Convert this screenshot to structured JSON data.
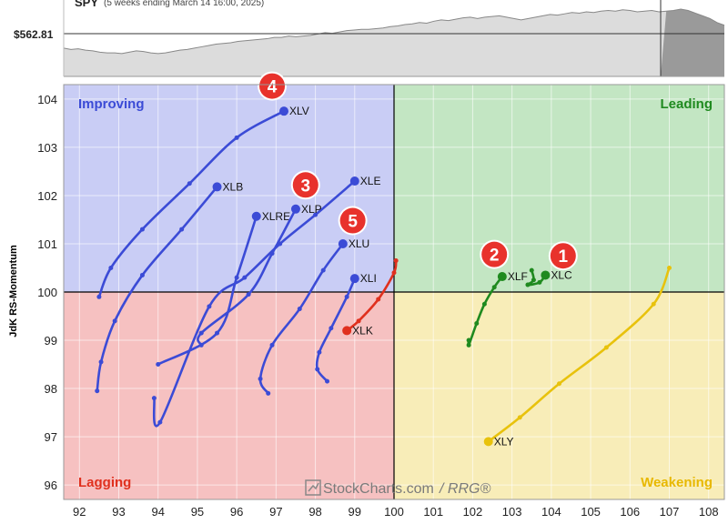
{
  "header": {
    "symbol": "SPY",
    "subtitle": "(5 weeks ending March 14 16:00, 2025)",
    "price_label": "$562.81"
  },
  "quadrants": {
    "improving": "Improving",
    "leading": "Leading",
    "lagging": "Lagging",
    "weakening": "Weakening"
  },
  "colors": {
    "improving": "#c9cdf5",
    "leading": "#c3e6c3",
    "lagging": "#f6c1c1",
    "weakening": "#f8edb8",
    "improving_text": "#3b4bd6",
    "leading_text": "#1f8a1f",
    "lagging_text": "#e0301e",
    "weakening_text": "#e8b800",
    "badge": "#e8322c"
  },
  "watermark": {
    "brand": "StockCharts.com",
    "product": "/ RRG®"
  },
  "chart_data": {
    "type": "scatter",
    "ylabel": "JdK RS-Momentum",
    "xlim": [
      91.6,
      108.4
    ],
    "ylim": [
      95.7,
      104.3
    ],
    "x_ticks": [
      "92",
      "93",
      "94",
      "95",
      "96",
      "97",
      "98",
      "99",
      "100",
      "101",
      "102",
      "103",
      "104",
      "105",
      "106",
      "107",
      "108"
    ],
    "y_ticks": [
      "96",
      "97",
      "98",
      "99",
      "100",
      "101",
      "102",
      "103",
      "104"
    ],
    "center": [
      100,
      100
    ],
    "grid": true,
    "series": [
      {
        "name": "XLV",
        "color": "#3b4bd6",
        "points": [
          [
            92.5,
            99.9
          ],
          [
            92.8,
            100.5
          ],
          [
            93.6,
            101.3
          ],
          [
            94.8,
            102.25
          ],
          [
            96.0,
            103.2
          ],
          [
            97.2,
            103.75
          ]
        ]
      },
      {
        "name": "XLB",
        "color": "#3b4bd6",
        "points": [
          [
            92.45,
            97.95
          ],
          [
            92.55,
            98.55
          ],
          [
            92.9,
            99.4
          ],
          [
            93.6,
            100.35
          ],
          [
            94.6,
            101.3
          ],
          [
            95.5,
            102.18
          ]
        ]
      },
      {
        "name": "XLE",
        "color": "#3b4bd6",
        "points": [
          [
            93.9,
            97.8
          ],
          [
            94.05,
            97.3
          ],
          [
            95.3,
            99.7
          ],
          [
            96.2,
            100.3
          ],
          [
            97.1,
            101.0
          ],
          [
            98.0,
            101.6
          ],
          [
            99.0,
            102.3
          ]
        ]
      },
      {
        "name": "XLRE",
        "color": "#3b4bd6",
        "points": [
          [
            94.0,
            98.5
          ],
          [
            95.5,
            99.15
          ],
          [
            96.0,
            100.3
          ],
          [
            96.5,
            101.57
          ]
        ]
      },
      {
        "name": "XLP",
        "color": "#3b4bd6",
        "points": [
          [
            95.1,
            98.9
          ],
          [
            95.1,
            99.15
          ],
          [
            96.3,
            99.95
          ],
          [
            96.9,
            100.8
          ],
          [
            97.5,
            101.72
          ]
        ]
      },
      {
        "name": "XLU",
        "color": "#3b4bd6",
        "points": [
          [
            96.8,
            97.9
          ],
          [
            96.6,
            98.2
          ],
          [
            96.9,
            98.9
          ],
          [
            97.6,
            99.65
          ],
          [
            98.2,
            100.45
          ],
          [
            98.7,
            101.0
          ]
        ]
      },
      {
        "name": "XLI",
        "color": "#3b4bd6",
        "points": [
          [
            98.3,
            98.15
          ],
          [
            98.05,
            98.4
          ],
          [
            98.1,
            98.75
          ],
          [
            98.4,
            99.25
          ],
          [
            98.8,
            99.9
          ],
          [
            99.0,
            100.28
          ]
        ]
      },
      {
        "name": "XLK",
        "color": "#e0301e",
        "points": [
          [
            100.05,
            100.65
          ],
          [
            100.0,
            100.4
          ],
          [
            99.6,
            99.85
          ],
          [
            99.1,
            99.4
          ],
          [
            98.8,
            99.2
          ]
        ]
      },
      {
        "name": "XLF",
        "color": "#1f8a1f",
        "points": [
          [
            101.9,
            99.0
          ],
          [
            101.9,
            98.9
          ],
          [
            102.1,
            99.35
          ],
          [
            102.3,
            99.75
          ],
          [
            102.55,
            100.1
          ],
          [
            102.75,
            100.32
          ]
        ]
      },
      {
        "name": "XLC",
        "color": "#1f8a1f",
        "points": [
          [
            103.5,
            100.45
          ],
          [
            103.55,
            100.25
          ],
          [
            103.4,
            100.15
          ],
          [
            103.7,
            100.2
          ],
          [
            103.85,
            100.35
          ]
        ]
      },
      {
        "name": "XLY",
        "color": "#e8c20c",
        "points": [
          [
            107.0,
            100.5
          ],
          [
            106.6,
            99.75
          ],
          [
            105.4,
            98.85
          ],
          [
            104.2,
            98.1
          ],
          [
            103.2,
            97.4
          ],
          [
            102.4,
            96.9
          ]
        ]
      }
    ],
    "badges": [
      {
        "text": "1",
        "x": 104.3,
        "y": 100.75
      },
      {
        "text": "2",
        "x": 102.55,
        "y": 100.78
      },
      {
        "text": "3",
        "x": 97.75,
        "y": 102.22
      },
      {
        "text": "4",
        "x": 96.9,
        "y": 104.27
      },
      {
        "text": "5",
        "x": 98.95,
        "y": 101.48
      }
    ],
    "spy_price_line": [
      0.42,
      0.4,
      0.41,
      0.39,
      0.38,
      0.36,
      0.35,
      0.35,
      0.34,
      0.36,
      0.38,
      0.37,
      0.35,
      0.34,
      0.35,
      0.37,
      0.39,
      0.4,
      0.42,
      0.44,
      0.46,
      0.48,
      0.49,
      0.5,
      0.52,
      0.53,
      0.54,
      0.55,
      0.56,
      0.58,
      0.58,
      0.6,
      0.59,
      0.6,
      0.61,
      0.63,
      0.65,
      0.64,
      0.66,
      0.68,
      0.69,
      0.7,
      0.7,
      0.71,
      0.72,
      0.74,
      0.75,
      0.77,
      0.78,
      0.8,
      0.79,
      0.82,
      0.84,
      0.83,
      0.85,
      0.87,
      0.88,
      0.86,
      0.88,
      0.89,
      0.9,
      0.88,
      0.86,
      0.84,
      0.86,
      0.88,
      0.9,
      0.92,
      0.91,
      0.93,
      0.95,
      0.94,
      0.96,
      0.95,
      0.97,
      0.98,
      0.97,
      0.99,
      0.98,
      0.96,
      0.97,
      0.98,
      0.96,
      0.97,
      0.98,
      1.0,
      0.98,
      0.94,
      0.9,
      0.86,
      0.8,
      0.76
    ]
  }
}
